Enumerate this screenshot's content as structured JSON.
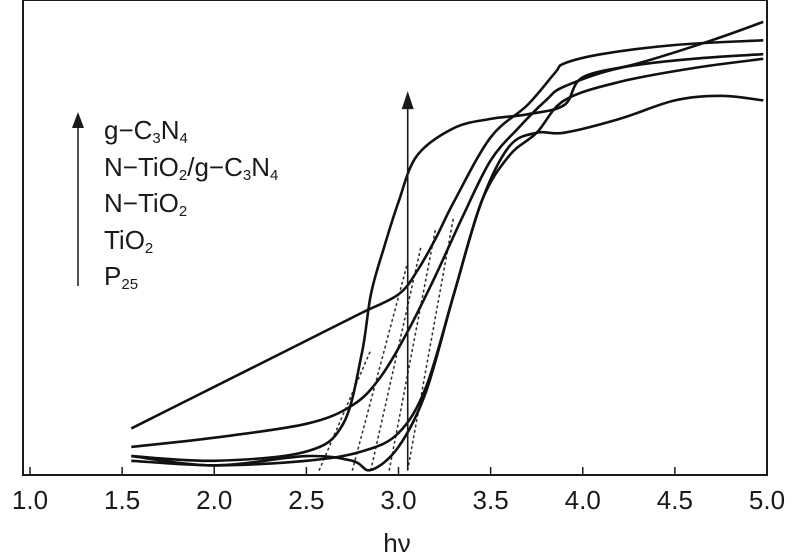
{
  "chart_data": {
    "type": "line",
    "title": "",
    "xlabel": "hν",
    "ylabel": "",
    "xlim": [
      1.0,
      5.0
    ],
    "ylim": [
      0,
      1
    ],
    "grid": false,
    "xticks": [
      "1.0",
      "1.5",
      "2.0",
      "2.5",
      "3.0",
      "3.5",
      "4.0",
      "4.5",
      "5.0"
    ],
    "legend": {
      "placement": "top-left",
      "entries": [
        "g-C3N4",
        "N-TiO2/g-C3N4",
        "N-TiO2",
        "TiO2",
        "P25"
      ],
      "arrow": "up"
    },
    "series": [
      {
        "name": "g-C3N4",
        "x": [
          1.55,
          2.0,
          2.5,
          2.7,
          2.8,
          2.85,
          2.92,
          3.0,
          3.1,
          3.3,
          3.5,
          3.7,
          3.9,
          4.0,
          4.3,
          4.7,
          4.98
        ],
        "y": [
          0.03,
          0.02,
          0.04,
          0.1,
          0.25,
          0.38,
          0.48,
          0.58,
          0.68,
          0.74,
          0.76,
          0.77,
          0.79,
          0.85,
          0.88,
          0.93,
          0.97
        ]
      },
      {
        "name": "N-TiO2/g-C3N4",
        "x": [
          1.55,
          2.0,
          2.5,
          2.8,
          3.0,
          3.1,
          3.2,
          3.3,
          3.5,
          3.7,
          3.85,
          3.9,
          4.1,
          4.5,
          4.98
        ],
        "y": [
          0.09,
          0.18,
          0.28,
          0.34,
          0.38,
          0.43,
          0.5,
          0.58,
          0.72,
          0.79,
          0.86,
          0.88,
          0.9,
          0.92,
          0.93
        ]
      },
      {
        "name": "N-TiO2",
        "x": [
          1.55,
          2.0,
          2.5,
          2.75,
          2.9,
          3.05,
          3.2,
          3.35,
          3.5,
          3.65,
          3.8,
          3.9,
          4.2,
          4.6,
          4.98
        ],
        "y": [
          0.05,
          0.07,
          0.1,
          0.14,
          0.2,
          0.3,
          0.42,
          0.55,
          0.67,
          0.74,
          0.8,
          0.83,
          0.87,
          0.89,
          0.9
        ]
      },
      {
        "name": "TiO2",
        "x": [
          1.55,
          2.0,
          2.5,
          2.8,
          3.0,
          3.15,
          3.3,
          3.45,
          3.6,
          3.75,
          3.9,
          4.2,
          4.6,
          4.98
        ],
        "y": [
          0.02,
          0.01,
          0.02,
          0.04,
          0.08,
          0.18,
          0.38,
          0.58,
          0.68,
          0.73,
          0.8,
          0.84,
          0.87,
          0.89
        ]
      },
      {
        "name": "P25",
        "x": [
          1.55,
          2.0,
          2.5,
          2.75,
          2.85,
          3.0,
          3.15,
          3.3,
          3.45,
          3.6,
          3.75,
          3.9,
          4.2,
          4.5,
          4.75,
          4.98
        ],
        "y": [
          0.03,
          0.01,
          0.03,
          0.02,
          0.0,
          0.05,
          0.17,
          0.38,
          0.58,
          0.7,
          0.73,
          0.73,
          0.76,
          0.8,
          0.81,
          0.8
        ]
      }
    ],
    "tangent_lines": [
      {
        "x": [
          2.57,
          2.85
        ],
        "y": [
          0.0,
          0.26
        ]
      },
      {
        "x": [
          2.75,
          3.05
        ],
        "y": [
          0.0,
          0.45
        ]
      },
      {
        "x": [
          2.85,
          3.12
        ],
        "y": [
          0.0,
          0.48
        ]
      },
      {
        "x": [
          2.95,
          3.2
        ],
        "y": [
          0.0,
          0.52
        ]
      },
      {
        "x": [
          3.05,
          3.3
        ],
        "y": [
          0.0,
          0.55
        ]
      }
    ],
    "marker_arrow": {
      "x": 3.05,
      "y_from": 0.0,
      "y_to": 0.82
    }
  }
}
